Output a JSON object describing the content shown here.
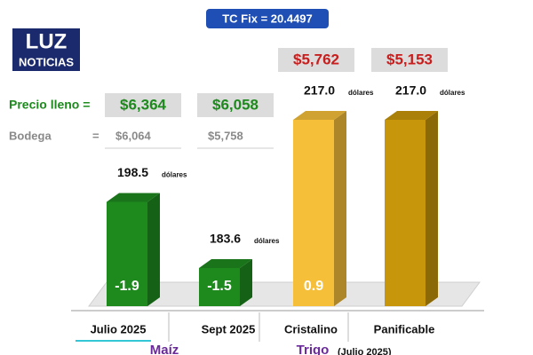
{
  "chart_data": {
    "type": "bar",
    "header": "TC Fix = 20.4497",
    "logo": {
      "line1": "LUZ",
      "line2": "NOTICIAS"
    },
    "categories": [
      "Julio 2025",
      "Sept 2025",
      "Cristalino",
      "Panificable"
    ],
    "values": [
      198.5,
      183.6,
      217.0,
      217.0
    ],
    "value_labels": [
      "198.5",
      "183.6",
      "217.0",
      "217.0"
    ],
    "unit": "dólares",
    "colors": [
      "#1e8a1e",
      "#1e8a1e",
      "#f5bf3a",
      "#c8960a"
    ],
    "changes": [
      -1.9,
      -1.5,
      0.9,
      null
    ],
    "ylim": [
      175,
      217
    ],
    "full_price": {
      "label": "Precio lleno =",
      "values": [
        "$6,364",
        "$6,058",
        "$5,762",
        "$5,153"
      ]
    },
    "bodega": {
      "label": "Bodega",
      "eq": "=",
      "values": [
        "$6,064",
        "$5,758"
      ]
    },
    "groups": [
      {
        "name": "Maíz"
      },
      {
        "name": "Trigo",
        "note": "(Julio 2025)"
      }
    ]
  }
}
